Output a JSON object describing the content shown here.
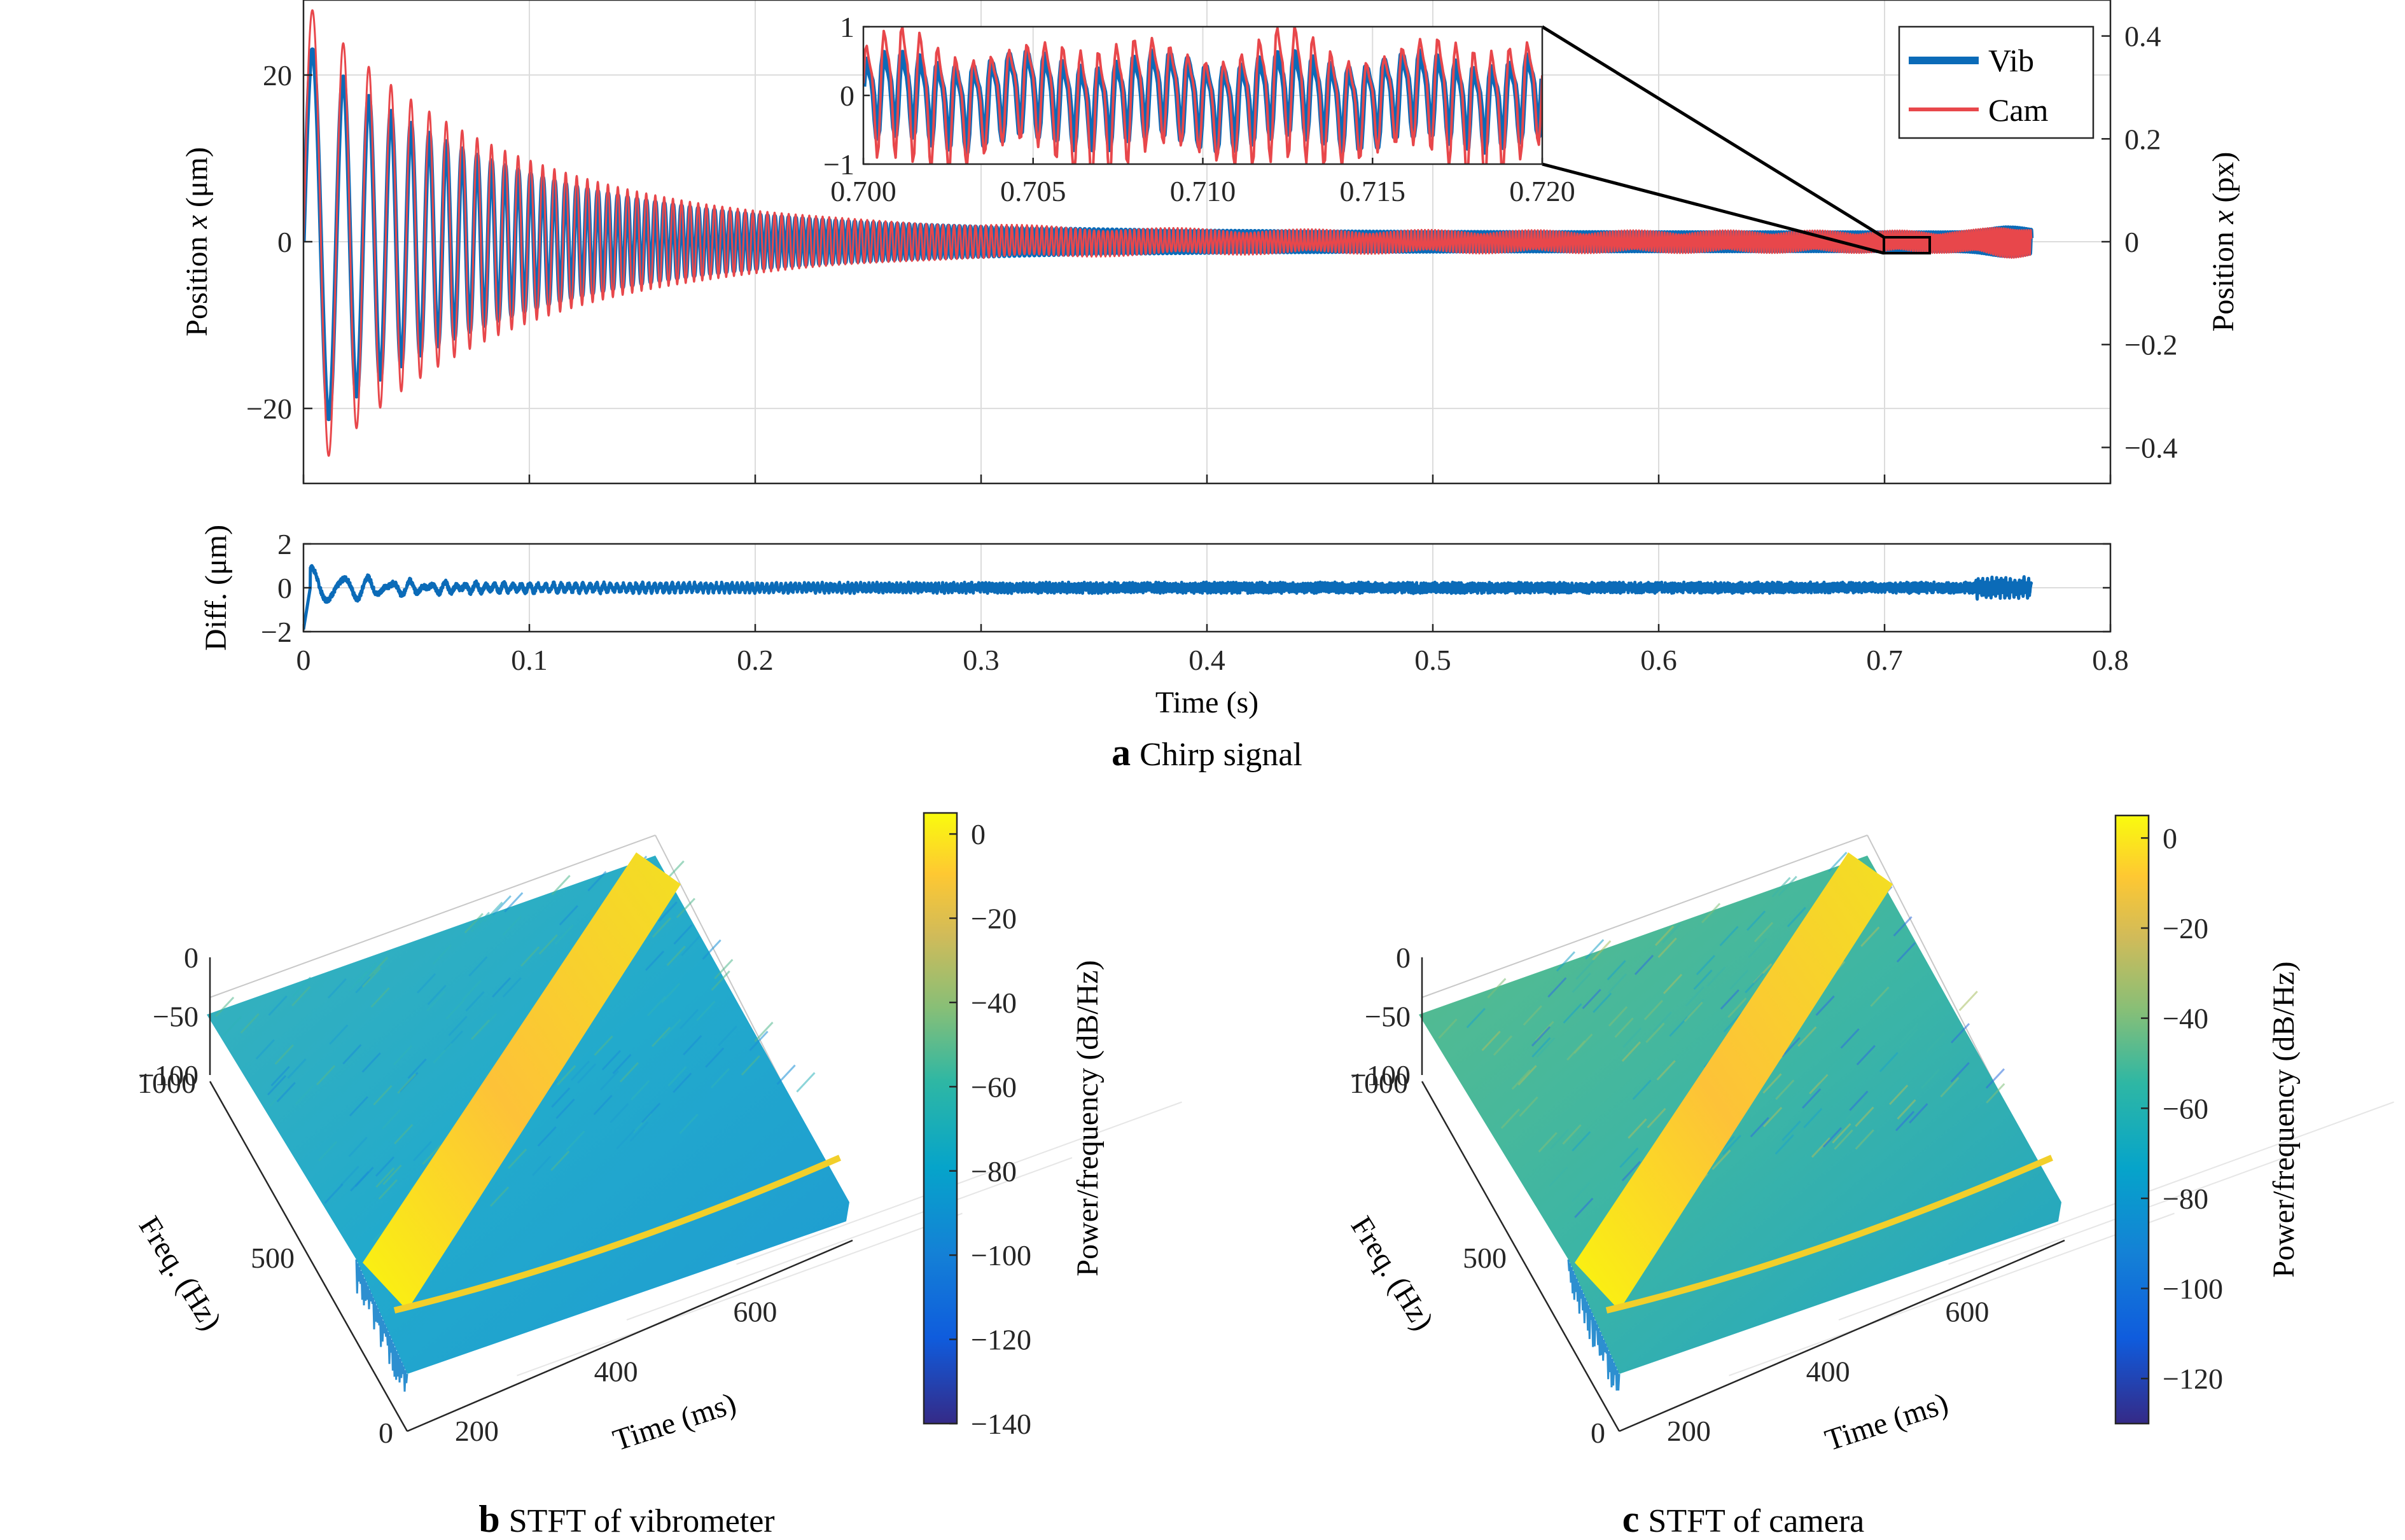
{
  "chart_data": [
    {
      "type": "line",
      "panel": "a",
      "caption_letter": "a",
      "caption_text": "Chirp signal",
      "ylabel_left_pre": "Position ",
      "ylabel_left_var": "x",
      "ylabel_left_unit": " (μm)",
      "ylabel_right_pre": "Position ",
      "ylabel_right_var": "x",
      "ylabel_right_unit": " (px)",
      "xlim": [
        0,
        0.8
      ],
      "ylim_left": [
        -29,
        29
      ],
      "ylim_right": [
        -0.47,
        0.47
      ],
      "yticks_left": [
        "20",
        "0",
        "−20"
      ],
      "yticks_right": [
        "0.4",
        "0.2",
        "0",
        "−0.2",
        "−0.4"
      ],
      "grid": true,
      "legend_position": "top-right",
      "series": [
        {
          "name": "Vib",
          "color": "#0b6bb8",
          "peak_amplitude": 23,
          "start_freq_hz": 60,
          "end_freq_hz": 1000,
          "duration_s": 0.765
        },
        {
          "name": "Cam",
          "color": "#e8474b",
          "peak_amplitude": 28,
          "start_freq_hz": 60,
          "end_freq_hz": 1000,
          "duration_s": 0.765
        }
      ],
      "inset": {
        "xlim": [
          0.7,
          0.72
        ],
        "ylim": [
          -1,
          1
        ],
        "xticks": [
          "0.700",
          "0.705",
          "0.710",
          "0.715",
          "0.720"
        ],
        "yticks": [
          "1",
          "0",
          "−1"
        ]
      }
    },
    {
      "type": "line",
      "panel": "a-diff",
      "ylabel": "Diff. (μm)",
      "xlabel": "Time (s)",
      "xlim": [
        0,
        0.8
      ],
      "ylim": [
        -2,
        2
      ],
      "xticks": [
        "0",
        "0.1",
        "0.2",
        "0.3",
        "0.4",
        "0.5",
        "0.6",
        "0.7",
        "0.8"
      ],
      "yticks": [
        "2",
        "0",
        "−2"
      ],
      "grid": true,
      "series": [
        {
          "name": "",
          "color": "#0b6bb8",
          "initial_amplitude": 0.9
        }
      ]
    },
    {
      "type": "surface",
      "panel": "b",
      "caption_letter": "b",
      "caption_text": "STFT of vibrometer",
      "xlabel": "Time (ms)",
      "ylabel": "Freq. (Hz)",
      "zticks": [
        "0",
        "−50",
        "−100"
      ],
      "time_ticks": [
        "200",
        "400",
        "600"
      ],
      "freq_ticks": [
        "0",
        "500",
        "1000"
      ],
      "colorbar_label": "Power/frequency (dB/Hz)",
      "colorbar_range": [
        -140,
        5
      ],
      "colorbar_ticks": [
        "0",
        "−20",
        "−40",
        "−60",
        "−80",
        "−100",
        "−120",
        "−140"
      ]
    },
    {
      "type": "surface",
      "panel": "c",
      "caption_letter": "c",
      "caption_text": "STFT of camera",
      "xlabel": "Time (ms)",
      "ylabel": "Freq. (Hz)",
      "zticks": [
        "0",
        "−50",
        "−100"
      ],
      "time_ticks": [
        "200",
        "400",
        "600"
      ],
      "freq_ticks": [
        "0",
        "500",
        "1000"
      ],
      "colorbar_label": "Power/frequency (dB/Hz)",
      "colorbar_range": [
        -130,
        5
      ],
      "colorbar_ticks": [
        "0",
        "−20",
        "−40",
        "−60",
        "−80",
        "−100",
        "−120"
      ]
    }
  ],
  "colors": {
    "vib": "#0b6bb8",
    "cam": "#e8474b",
    "parula": [
      "#352a87",
      "#0f5cdd",
      "#1481d6",
      "#06a4ca",
      "#2eb7a4",
      "#87bf77",
      "#d1bb59",
      "#fec832",
      "#f9fb0e"
    ]
  }
}
